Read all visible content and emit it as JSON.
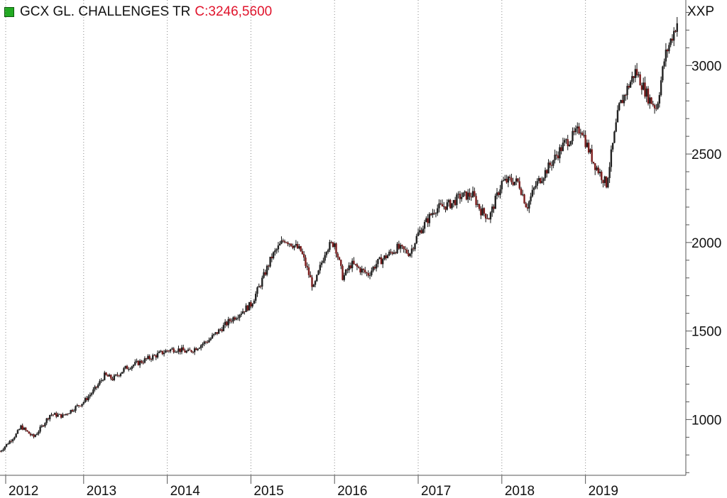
{
  "header": {
    "title": "GCX GL. CHALLENGES TR",
    "last_label": "C:3246,5600",
    "ticker": "XXP"
  },
  "colors": {
    "up": "#222222",
    "down": "#7a1b1b",
    "grid": "#888888",
    "legend": "#22aa22",
    "last": "#e0142c"
  },
  "chart_data": {
    "type": "line",
    "title": "GCX GL. CHALLENGES TR",
    "xlabel": "",
    "ylabel": "",
    "x_ticks": [
      "2012",
      "2013",
      "2014",
      "2015",
      "2016",
      "2017",
      "2018",
      "2019"
    ],
    "y_ticks": [
      1000,
      1500,
      2000,
      2500,
      3000
    ],
    "y_minor_step": 100,
    "xlim": [
      2012.0,
      2020.2
    ],
    "ylim": [
      685,
      3370
    ],
    "grid": "vertical dotted at year starts",
    "x": [
      2012.0,
      2012.2,
      2012.25,
      2012.4,
      2012.5,
      2012.6,
      2012.75,
      2013.0,
      2013.15,
      2013.25,
      2013.35,
      2013.5,
      2013.75,
      2014.0,
      2014.1,
      2014.25,
      2014.5,
      2014.75,
      2015.0,
      2015.1,
      2015.25,
      2015.4,
      2015.5,
      2015.6,
      2015.75,
      2015.9,
      2016.0,
      2016.1,
      2016.2,
      2016.4,
      2016.5,
      2016.75,
      2016.9,
      2017.0,
      2017.2,
      2017.4,
      2017.5,
      2017.65,
      2017.75,
      2017.85,
      2018.0,
      2018.1,
      2018.2,
      2018.3,
      2018.4,
      2018.55,
      2018.75,
      2018.85,
      2018.95,
      2019.0,
      2019.1,
      2019.25,
      2019.4,
      2019.5,
      2019.6,
      2019.75,
      2019.85,
      2019.95,
      2020.1
    ],
    "close": [
      820,
      920,
      960,
      900,
      960,
      1030,
      1020,
      1100,
      1180,
      1250,
      1230,
      1290,
      1340,
      1390,
      1400,
      1380,
      1450,
      1560,
      1650,
      1750,
      1920,
      2020,
      1990,
      1950,
      1740,
      1970,
      2000,
      1800,
      1880,
      1820,
      1880,
      1970,
      1940,
      2050,
      2190,
      2220,
      2260,
      2270,
      2180,
      2140,
      2340,
      2350,
      2340,
      2200,
      2320,
      2420,
      2560,
      2600,
      2650,
      2570,
      2450,
      2330,
      2760,
      2870,
      2970,
      2820,
      2760,
      3050,
      3250
    ]
  }
}
